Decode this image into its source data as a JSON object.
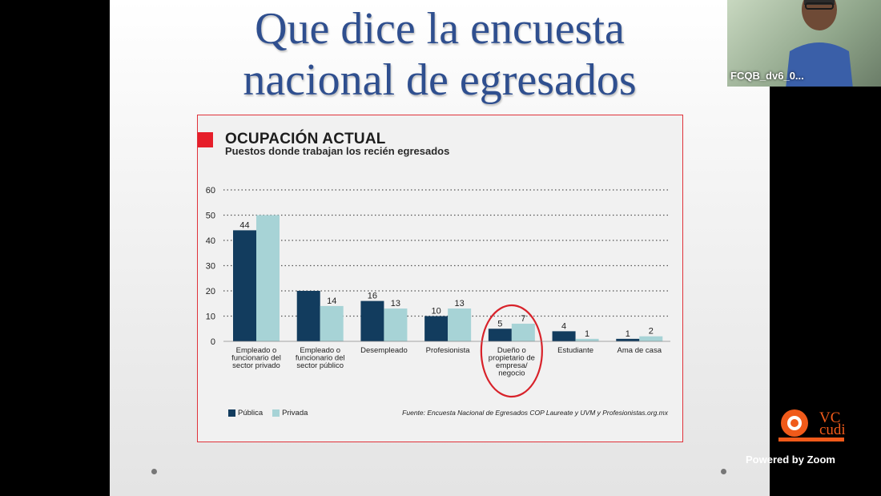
{
  "slide": {
    "title_line1": "Que dice la encuesta",
    "title_line2": "nacional de egresados"
  },
  "chart_data": {
    "type": "bar",
    "title": "OCUPACIÓN ACTUAL",
    "subtitle": "Puestos donde trabajan los recién egresados",
    "categories": [
      [
        "Empleado o",
        "funcionario del",
        "sector privado"
      ],
      [
        "Empleado o",
        "funcionario del",
        "sector público"
      ],
      [
        "Desempleado"
      ],
      [
        "Profesionista"
      ],
      [
        "Dueño o",
        "propietario de",
        "empresa/",
        "negocio"
      ],
      [
        "Estudiante"
      ],
      [
        "Ama de casa"
      ]
    ],
    "series": [
      {
        "name": "Pública",
        "color": "#123c5e",
        "values": [
          44,
          20,
          16,
          10,
          5,
          4,
          1
        ],
        "labels": [
          "44",
          "",
          "16",
          "10",
          "5",
          "4",
          "1"
        ]
      },
      {
        "name": "Privada",
        "color": "#a7d3d6",
        "values": [
          50,
          14,
          13,
          13,
          7,
          1,
          2
        ],
        "labels": [
          "",
          "14",
          "13",
          "13",
          "7",
          "1",
          "2"
        ]
      }
    ],
    "ylim": [
      0,
      60
    ],
    "yticks": [
      "0",
      "10",
      "20",
      "30",
      "40",
      "50",
      "60"
    ],
    "grid": true,
    "legend_position": "bottom-left",
    "highlighted_category_index": 4,
    "highlight_color": "#d8222a",
    "source": "Fuente: Encuesta Nacional de Egresados COP Laureate y UVM y Profesionistas.org.mx"
  },
  "webcam": {
    "participant_name": "FCQB_dv6_0..."
  },
  "branding": {
    "vc_logo_text_top": "VC",
    "vc_logo_text_bottom": "cudi",
    "powered_by": "Powered by Zoom",
    "accent_color": "#f05a1a"
  }
}
